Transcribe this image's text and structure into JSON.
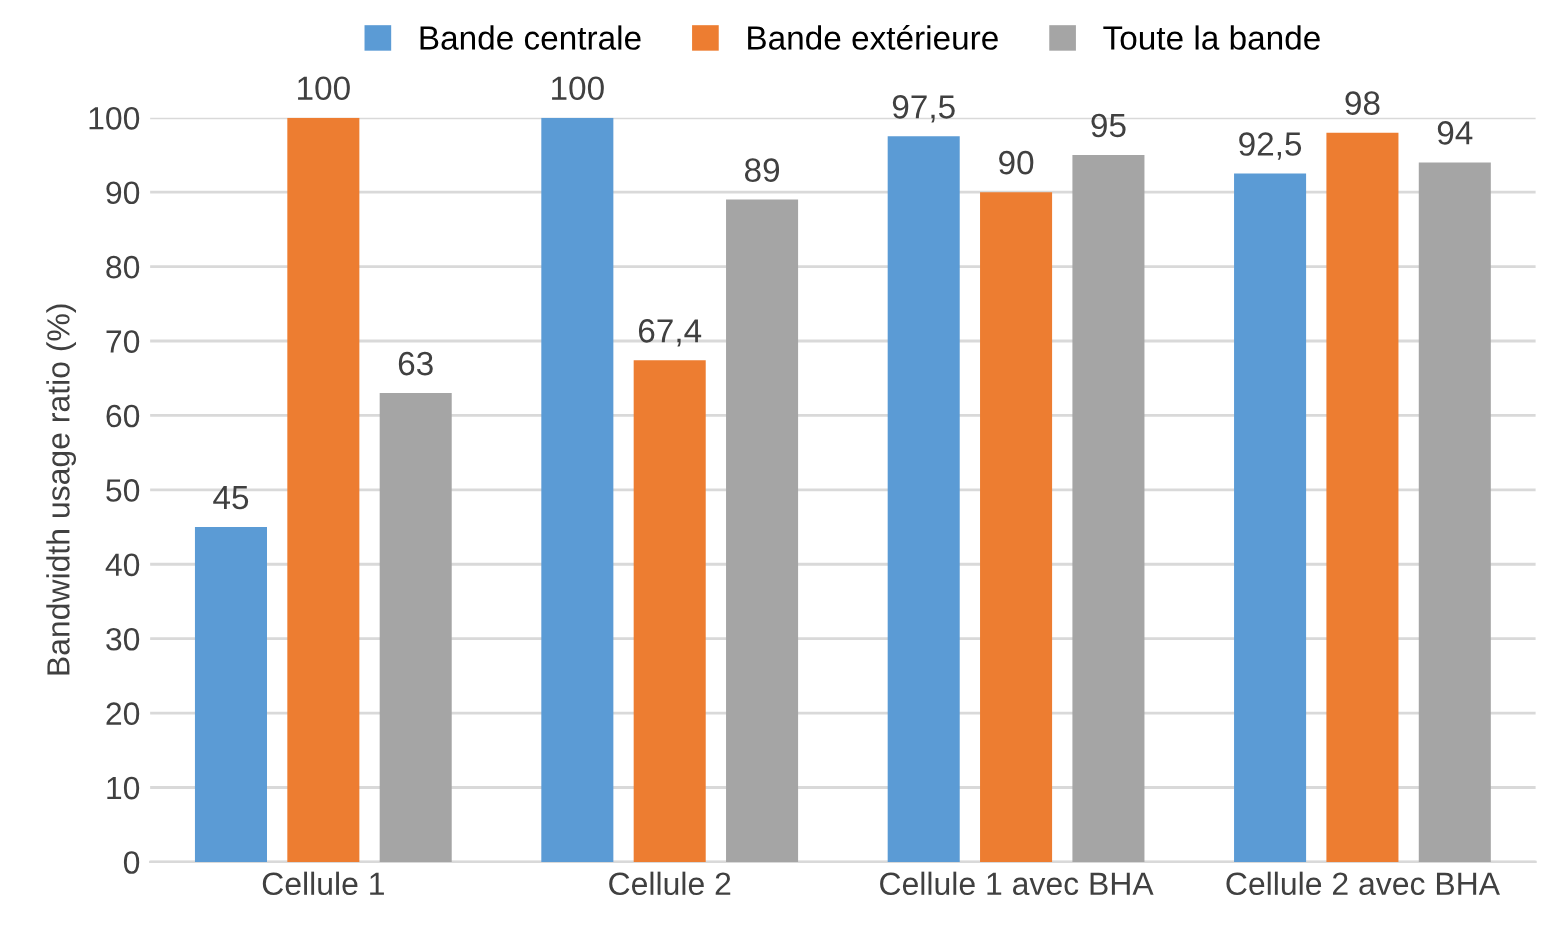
{
  "chart_data": {
    "type": "bar",
    "ylabel": "Bandwidth usage ratio (%)",
    "categories": [
      "Cellule 1",
      "Cellule 2",
      "Cellule 1 avec BHA",
      "Cellule 2 avec BHA"
    ],
    "series": [
      {
        "name": "Bande centrale",
        "color": "#5b9bd5",
        "values": [
          45,
          100,
          97.5,
          92.5
        ],
        "value_labels": [
          "45",
          "100",
          "97,5",
          "92,5"
        ]
      },
      {
        "name": "Bande extérieure",
        "color": "#ed7d31",
        "values": [
          100,
          67.4,
          90,
          98
        ],
        "value_labels": [
          "100",
          "67,4",
          "90",
          "98"
        ]
      },
      {
        "name": "Toute la bande",
        "color": "#a5a5a5",
        "values": [
          63,
          89,
          95,
          94
        ],
        "value_labels": [
          "63",
          "89",
          "95",
          "94"
        ]
      }
    ],
    "ylim": [
      0,
      100
    ],
    "yticks": [
      0,
      10,
      20,
      30,
      40,
      50,
      60,
      70,
      80,
      90,
      100
    ],
    "grid": "y",
    "legend": "top"
  }
}
